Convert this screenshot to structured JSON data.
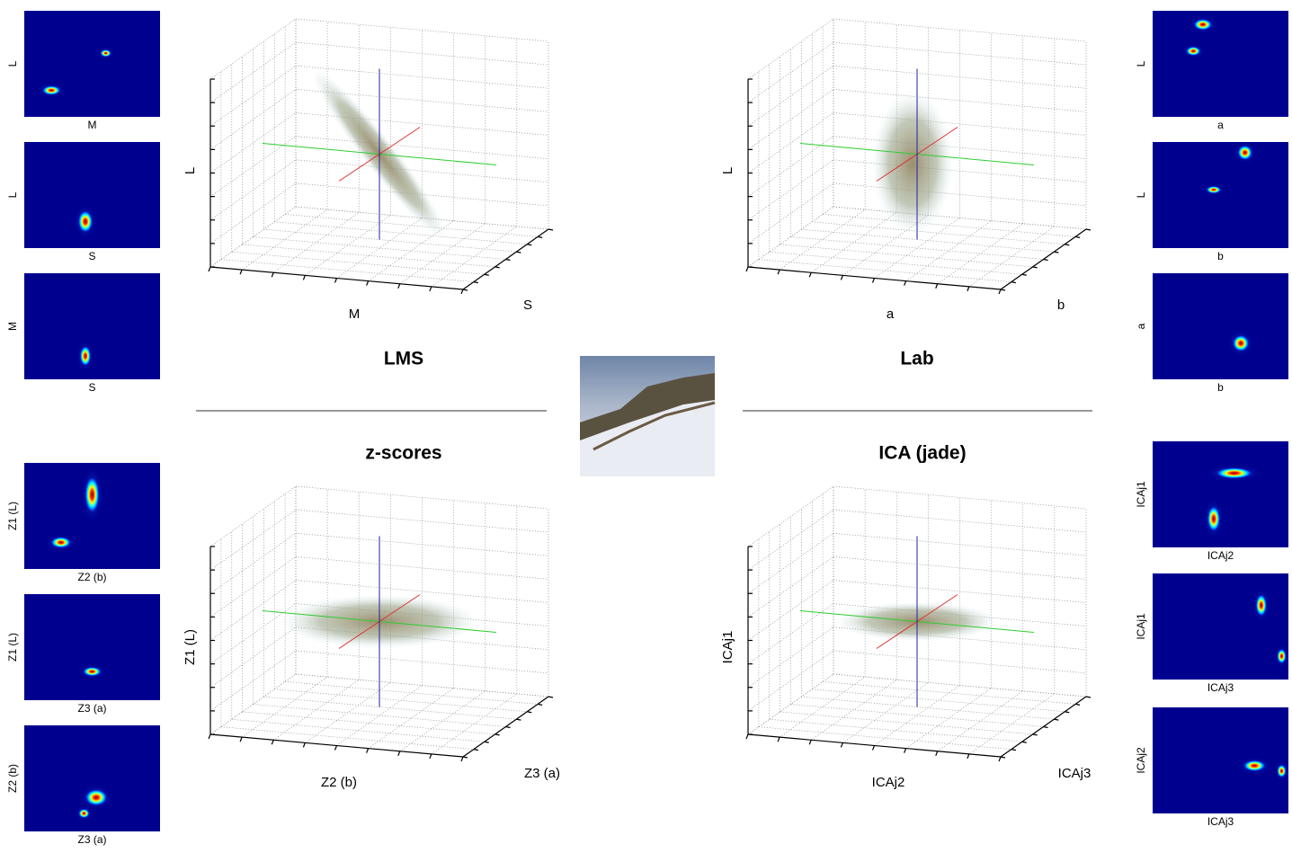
{
  "panels": [
    {
      "title": "LMS",
      "plot3d": {
        "x_label": "M",
        "y_label": "S",
        "z_label": "L"
      },
      "heatmaps": [
        {
          "x_label": "M",
          "y_label": "L"
        },
        {
          "x_label": "S",
          "y_label": "L"
        },
        {
          "x_label": "S",
          "y_label": "M"
        }
      ]
    },
    {
      "title": "Lab",
      "plot3d": {
        "x_label": "a",
        "y_label": "b",
        "z_label": "L"
      },
      "heatmaps": [
        {
          "x_label": "a",
          "y_label": "L"
        },
        {
          "x_label": "b",
          "y_label": "L"
        },
        {
          "x_label": "b",
          "y_label": "a"
        }
      ]
    },
    {
      "title": "z-scores",
      "plot3d": {
        "x_label": "Z2 (b)",
        "y_label": "Z3 (a)",
        "z_label": "Z1 (L)"
      },
      "heatmaps": [
        {
          "x_label": "Z2 (b)",
          "y_label": "Z1 (L)"
        },
        {
          "x_label": "Z3 (a)",
          "y_label": "Z1 (L)"
        },
        {
          "x_label": "Z3 (a)",
          "y_label": "Z2 (b)"
        }
      ]
    },
    {
      "title": "ICA (jade)",
      "plot3d": {
        "x_label": "ICAj2",
        "y_label": "ICAj3",
        "z_label": "ICAj1"
      },
      "heatmaps": [
        {
          "x_label": "ICAj2",
          "y_label": "ICAj1"
        },
        {
          "x_label": "ICAj3",
          "y_label": "ICAj1"
        },
        {
          "x_label": "ICAj3",
          "y_label": "ICAj2"
        }
      ]
    }
  ]
}
